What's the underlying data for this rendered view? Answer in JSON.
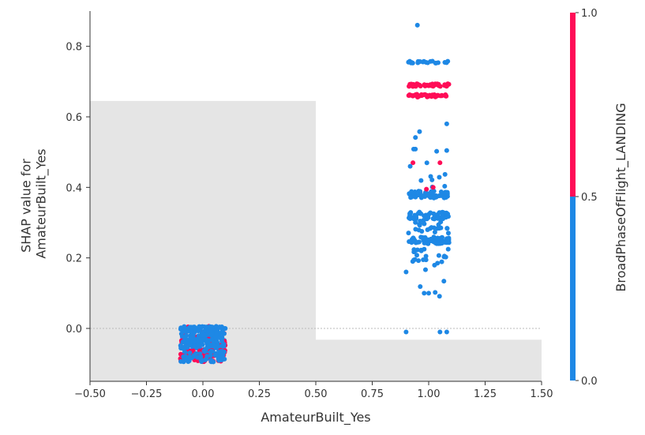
{
  "chart_data": {
    "type": "scatter",
    "title": "",
    "xlabel": "AmateurBuilt_Yes",
    "ylabel_lines": [
      "SHAP value for",
      "AmateurBuilt_Yes"
    ],
    "xlim": [
      -0.5,
      1.5
    ],
    "ylim": [
      -0.15,
      0.9
    ],
    "x_ticks": [
      -0.5,
      -0.25,
      0.0,
      0.25,
      0.5,
      0.75,
      1.0,
      1.25,
      1.5
    ],
    "x_tick_labels": [
      "−0.50",
      "−0.25",
      "0.00",
      "0.25",
      "0.50",
      "0.75",
      "1.00",
      "1.25",
      "1.50"
    ],
    "y_ticks": [
      0.0,
      0.2,
      0.4,
      0.6,
      0.8
    ],
    "y_tick_labels": [
      "0.0",
      "0.2",
      "0.4",
      "0.6",
      "0.8"
    ],
    "zero_line": true,
    "grid": false,
    "histogram_background": {
      "color": "#e5e5e5",
      "bins": [
        {
          "x0": -0.5,
          "x1": 0.5,
          "height": 0.795
        },
        {
          "x0": 0.5,
          "x1": 1.5,
          "height": 0.118
        }
      ]
    },
    "colorbar": {
      "label": "BroadPhaseOfFlight_LANDING",
      "low_color": "#1e88e5",
      "high_color": "#ff0d57",
      "tick_values": [
        0.0,
        0.5,
        1.0
      ],
      "tick_labels": [
        "0.0",
        "0.5",
        "1.0"
      ]
    },
    "groups": [
      {
        "x_center": 0.0,
        "jitter": 0.1,
        "bands": [
          {
            "y": 0.0,
            "y_spread": 0.006,
            "count": 70,
            "high_fraction": 0.05
          },
          {
            "y": -0.02,
            "y_spread": 0.015,
            "count": 90,
            "high_fraction": 0.1
          },
          {
            "y": -0.045,
            "y_spread": 0.015,
            "count": 110,
            "high_fraction": 0.15
          },
          {
            "y": -0.07,
            "y_spread": 0.008,
            "count": 80,
            "high_fraction": 0.6
          },
          {
            "y": -0.085,
            "y_spread": 0.01,
            "count": 80,
            "high_fraction": 0.5
          }
        ]
      },
      {
        "x_center": 1.0,
        "jitter": 0.09,
        "bands": [
          {
            "y": 0.69,
            "y_spread": 0.004,
            "count": 45,
            "high_fraction": 1.0
          },
          {
            "y": 0.66,
            "y_spread": 0.004,
            "count": 45,
            "high_fraction": 1.0
          },
          {
            "y": 0.755,
            "y_spread": 0.003,
            "count": 20,
            "high_fraction": 0.0
          },
          {
            "y": 0.38,
            "y_spread": 0.01,
            "count": 60,
            "high_fraction": 0.03
          },
          {
            "y": 0.32,
            "y_spread": 0.01,
            "count": 55,
            "high_fraction": 0.0
          },
          {
            "y": 0.25,
            "y_spread": 0.01,
            "count": 75,
            "high_fraction": 0.0
          },
          {
            "y": 0.29,
            "y_spread": 0.02,
            "count": 25,
            "high_fraction": 0.0
          },
          {
            "y": 0.21,
            "y_spread": 0.02,
            "count": 20,
            "high_fraction": 0.0
          },
          {
            "y": 0.44,
            "y_spread": 0.04,
            "count": 10,
            "high_fraction": 0.1
          },
          {
            "y": 0.53,
            "y_spread": 0.03,
            "count": 6,
            "high_fraction": 0.0
          },
          {
            "y": 0.14,
            "y_spread": 0.05,
            "count": 8,
            "high_fraction": 0.0
          }
        ]
      }
    ],
    "outliers": [
      {
        "x": 0.95,
        "y": 0.86,
        "v": 0.0
      },
      {
        "x": 1.08,
        "y": 0.58,
        "v": 0.0
      },
      {
        "x": 0.9,
        "y": -0.01,
        "v": 0.0
      },
      {
        "x": 1.05,
        "y": -0.01,
        "v": 0.0
      },
      {
        "x": 1.08,
        "y": -0.01,
        "v": 0.0
      },
      {
        "x": 0.98,
        "y": 0.1,
        "v": 0.0
      },
      {
        "x": 1.0,
        "y": 0.1,
        "v": 0.0
      },
      {
        "x": 1.05,
        "y": 0.47,
        "v": 1.0
      },
      {
        "x": 0.99,
        "y": 0.395,
        "v": 1.0
      },
      {
        "x": 1.02,
        "y": 0.4,
        "v": 1.0
      },
      {
        "x": 0.9,
        "y": 0.16,
        "v": 0.0
      }
    ]
  }
}
